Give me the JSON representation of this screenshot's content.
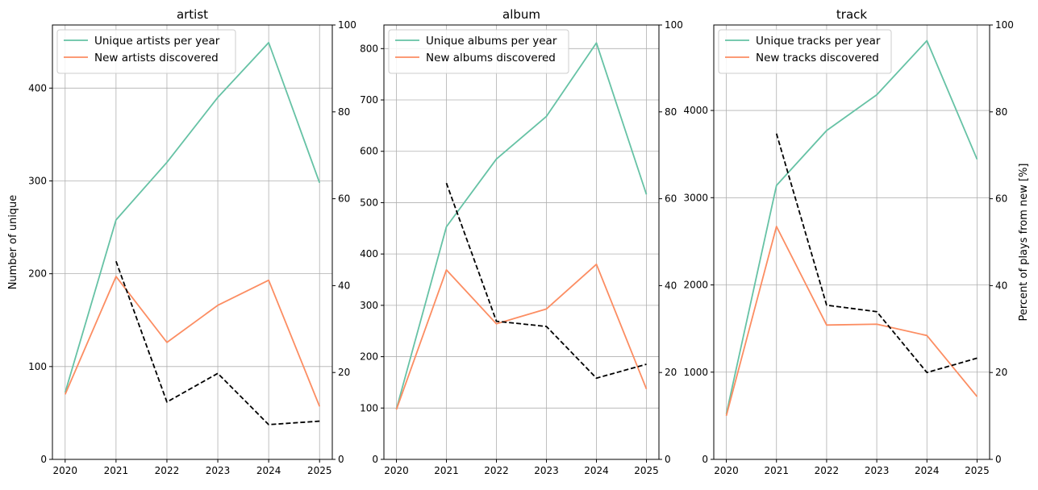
{
  "chart_data": [
    {
      "type": "line",
      "title": "artist",
      "ylabel": "Number of unique",
      "y2label": "",
      "x": [
        2020,
        2021,
        2022,
        2023,
        2024,
        2025
      ],
      "ylim": [
        0,
        468
      ],
      "y2lim": [
        0,
        100
      ],
      "yticks": [
        0,
        100,
        200,
        300,
        400
      ],
      "y2ticks": [
        0,
        20,
        40,
        60,
        80,
        100
      ],
      "grid": true,
      "legend": "top-left",
      "series": [
        {
          "name": "Unique artists per year",
          "axis": "left",
          "color": "#66c2a5",
          "dash": false,
          "x": [
            2020,
            2021,
            2022,
            2023,
            2024,
            2025
          ],
          "values": [
            72,
            258,
            320,
            390,
            449,
            298
          ]
        },
        {
          "name": "New artists discovered",
          "axis": "left",
          "color": "#fc8d62",
          "dash": false,
          "x": [
            2020,
            2021,
            2022,
            2023,
            2024,
            2025
          ],
          "values": [
            70,
            197,
            126,
            166,
            193,
            57
          ]
        },
        {
          "axis": "right",
          "color": "#000000",
          "dash": true,
          "x": [
            2021,
            2022,
            2023,
            2024,
            2025
          ],
          "values": [
            45.6,
            13.2,
            19.8,
            8.0,
            8.8
          ]
        }
      ]
    },
    {
      "type": "line",
      "title": "album",
      "ylabel": "",
      "y2label": "",
      "x": [
        2020,
        2021,
        2022,
        2023,
        2024,
        2025
      ],
      "ylim": [
        0,
        846
      ],
      "y2lim": [
        0,
        100
      ],
      "yticks": [
        0,
        100,
        200,
        300,
        400,
        500,
        600,
        700,
        800
      ],
      "y2ticks": [
        0,
        20,
        40,
        60,
        80,
        100
      ],
      "grid": true,
      "legend": "top-left",
      "series": [
        {
          "name": "Unique albums per year",
          "axis": "left",
          "color": "#66c2a5",
          "dash": false,
          "x": [
            2020,
            2021,
            2022,
            2023,
            2024,
            2025
          ],
          "values": [
            98,
            453,
            585,
            668,
            811,
            516
          ]
        },
        {
          "name": "New albums discovered",
          "axis": "left",
          "color": "#fc8d62",
          "dash": false,
          "x": [
            2020,
            2021,
            2022,
            2023,
            2024,
            2025
          ],
          "values": [
            97,
            369,
            264,
            293,
            380,
            137
          ]
        },
        {
          "axis": "right",
          "color": "#000000",
          "dash": true,
          "x": [
            2021,
            2022,
            2023,
            2024,
            2025
          ],
          "values": [
            63.6,
            31.8,
            30.6,
            18.7,
            21.9
          ]
        }
      ]
    },
    {
      "type": "line",
      "title": "track",
      "ylabel": "",
      "y2label": "Percent of plays from new [%]",
      "x": [
        2020,
        2021,
        2022,
        2023,
        2024,
        2025
      ],
      "ylim": [
        0,
        4980
      ],
      "y2lim": [
        0,
        100
      ],
      "yticks": [
        0,
        1000,
        2000,
        3000,
        4000
      ],
      "y2ticks": [
        0,
        20,
        40,
        60,
        80,
        100
      ],
      "grid": true,
      "legend": "top-left",
      "series": [
        {
          "name": "Unique tracks per year",
          "axis": "left",
          "color": "#66c2a5",
          "dash": false,
          "x": [
            2020,
            2021,
            2022,
            2023,
            2024,
            2025
          ],
          "values": [
            520,
            3140,
            3770,
            4180,
            4800,
            3440
          ]
        },
        {
          "name": "New tracks discovered",
          "axis": "left",
          "color": "#fc8d62",
          "dash": false,
          "x": [
            2020,
            2021,
            2022,
            2023,
            2024,
            2025
          ],
          "values": [
            500,
            2670,
            1540,
            1550,
            1420,
            720
          ]
        },
        {
          "axis": "right",
          "color": "#000000",
          "dash": true,
          "x": [
            2021,
            2022,
            2023,
            2024,
            2025
          ],
          "values": [
            75.0,
            35.5,
            34.0,
            20.0,
            23.3
          ]
        }
      ]
    }
  ]
}
